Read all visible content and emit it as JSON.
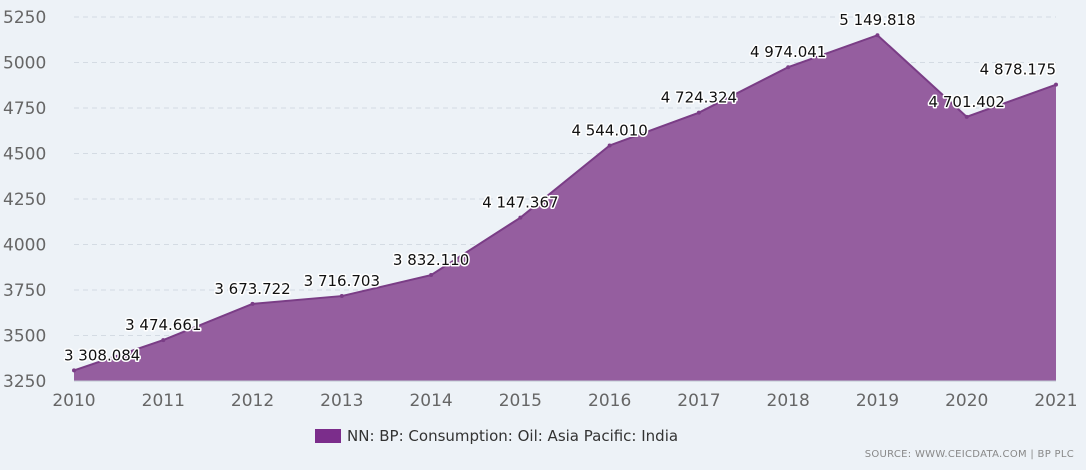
{
  "chart_data": {
    "type": "area",
    "title": "",
    "xlabel": "",
    "ylabel": "",
    "x": [
      "2010",
      "2011",
      "2012",
      "2013",
      "2014",
      "2015",
      "2016",
      "2017",
      "2018",
      "2019",
      "2020",
      "2021"
    ],
    "series": [
      {
        "name": "NN: BP: Consumption: Oil: Asia Pacific: India",
        "values": [
          3308.084,
          3474.661,
          3673.722,
          3716.703,
          3832.11,
          4147.367,
          4544.01,
          4724.324,
          4974.041,
          5149.818,
          4701.402,
          4878.175
        ],
        "labels": [
          "3 308.084",
          "3 474.661",
          "3 673.722",
          "3 716.703",
          "3 832.110",
          "4 147.367",
          "4 544.010",
          "4 724.324",
          "4 974.041",
          "5 149.818",
          "4 701.402",
          "4 878.175"
        ]
      }
    ],
    "y_ticks": [
      "3250",
      "3500",
      "3750",
      "4000",
      "4250",
      "4500",
      "4750",
      "5000",
      "5250"
    ],
    "ylim": [
      3250,
      5250
    ],
    "grid": true,
    "legend_position": "bottom-center",
    "fill_color": "#955e9f",
    "line_color": "#7a3d86",
    "swatch_color": "#7b2d8b"
  },
  "source_text": "SOURCE: WWW.CEICDATA.COM | BP PLC"
}
